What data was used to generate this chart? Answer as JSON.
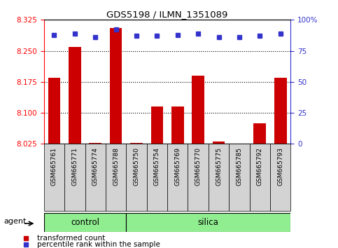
{
  "title": "GDS5198 / ILMN_1351089",
  "samples": [
    "GSM665761",
    "GSM665771",
    "GSM665774",
    "GSM665788",
    "GSM665750",
    "GSM665754",
    "GSM665769",
    "GSM665770",
    "GSM665775",
    "GSM665785",
    "GSM665792",
    "GSM665793"
  ],
  "red_values": [
    8.185,
    8.26,
    8.028,
    8.305,
    8.028,
    8.115,
    8.115,
    8.19,
    8.03,
    8.022,
    8.075,
    8.185
  ],
  "blue_values": [
    88,
    89,
    86,
    92,
    87,
    87,
    88,
    89,
    86,
    86,
    87,
    89
  ],
  "ylim_left": [
    8.025,
    8.325
  ],
  "ylim_right": [
    0,
    100
  ],
  "yticks_left": [
    8.025,
    8.1,
    8.175,
    8.25,
    8.325
  ],
  "yticks_right": [
    0,
    25,
    50,
    75,
    100
  ],
  "n_control": 4,
  "n_silica": 8,
  "bar_color": "#cc0000",
  "dot_color": "#3333cc",
  "green_color": "#90ee90",
  "grey_color": "#d3d3d3",
  "agent_label": "agent",
  "control_label": "control",
  "silica_label": "silica",
  "legend_red": "transformed count",
  "legend_blue": "percentile rank within the sample",
  "bar_bottom": 8.025,
  "bar_width": 0.6
}
